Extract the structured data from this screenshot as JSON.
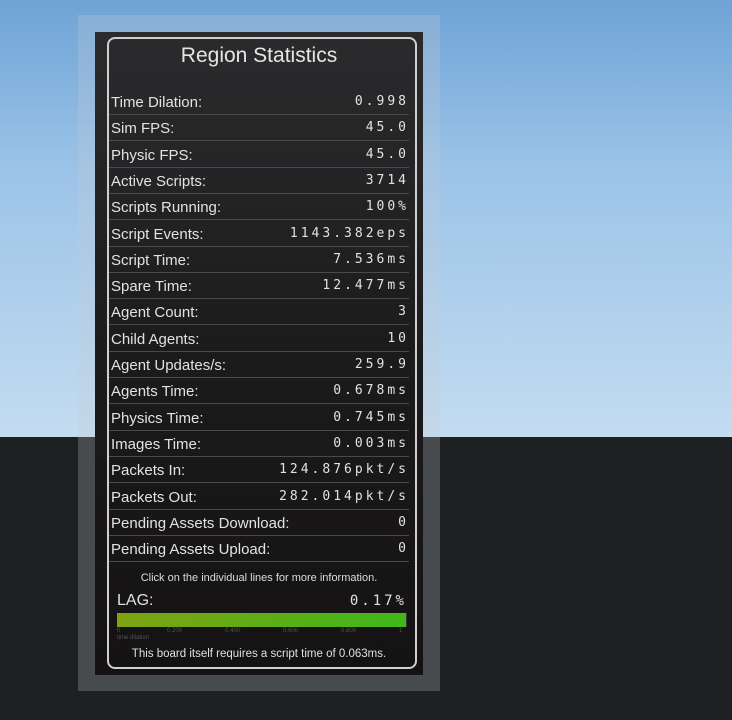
{
  "board": {
    "title": "Region Statistics",
    "rows": [
      {
        "label": "Time Dilation:",
        "value": "0.998"
      },
      {
        "label": "Sim FPS:",
        "value": "45.0"
      },
      {
        "label": "Physic FPS:",
        "value": "45.0"
      },
      {
        "label": "Active Scripts:",
        "value": "3714"
      },
      {
        "label": "Scripts Running:",
        "value": "100%"
      },
      {
        "label": "Script Events:",
        "value": "1143.382eps"
      },
      {
        "label": "Script Time:",
        "value": "7.536ms"
      },
      {
        "label": "Spare Time:",
        "value": "12.477ms"
      },
      {
        "label": "Agent Count:",
        "value": "3"
      },
      {
        "label": "Child Agents:",
        "value": "10"
      },
      {
        "label": "Agent Updates/s:",
        "value": "259.9"
      },
      {
        "label": "Agents Time:",
        "value": "0.678ms"
      },
      {
        "label": "Physics Time:",
        "value": "0.745ms"
      },
      {
        "label": "Images Time:",
        "value": "0.003ms"
      },
      {
        "label": "Packets In:",
        "value": "124.876pkt/s"
      },
      {
        "label": "Packets Out:",
        "value": "282.014pkt/s"
      },
      {
        "label": "Pending Assets Download:",
        "value": "0"
      },
      {
        "label": "Pending Assets Upload:",
        "value": "0"
      }
    ],
    "hint": "Click on the individual lines for more information.",
    "lag_label": "LAG:",
    "lag_value": "0.17%",
    "bar": {
      "fill_fraction": 0.998,
      "ticks": [
        "0",
        "0.200",
        "0.400",
        "0.600",
        "0.800",
        "1"
      ],
      "caption": "time dilation",
      "colors": [
        "#7fa212",
        "#3fb81a"
      ]
    },
    "footer": "This board itself requires a script time of 0.063ms."
  }
}
